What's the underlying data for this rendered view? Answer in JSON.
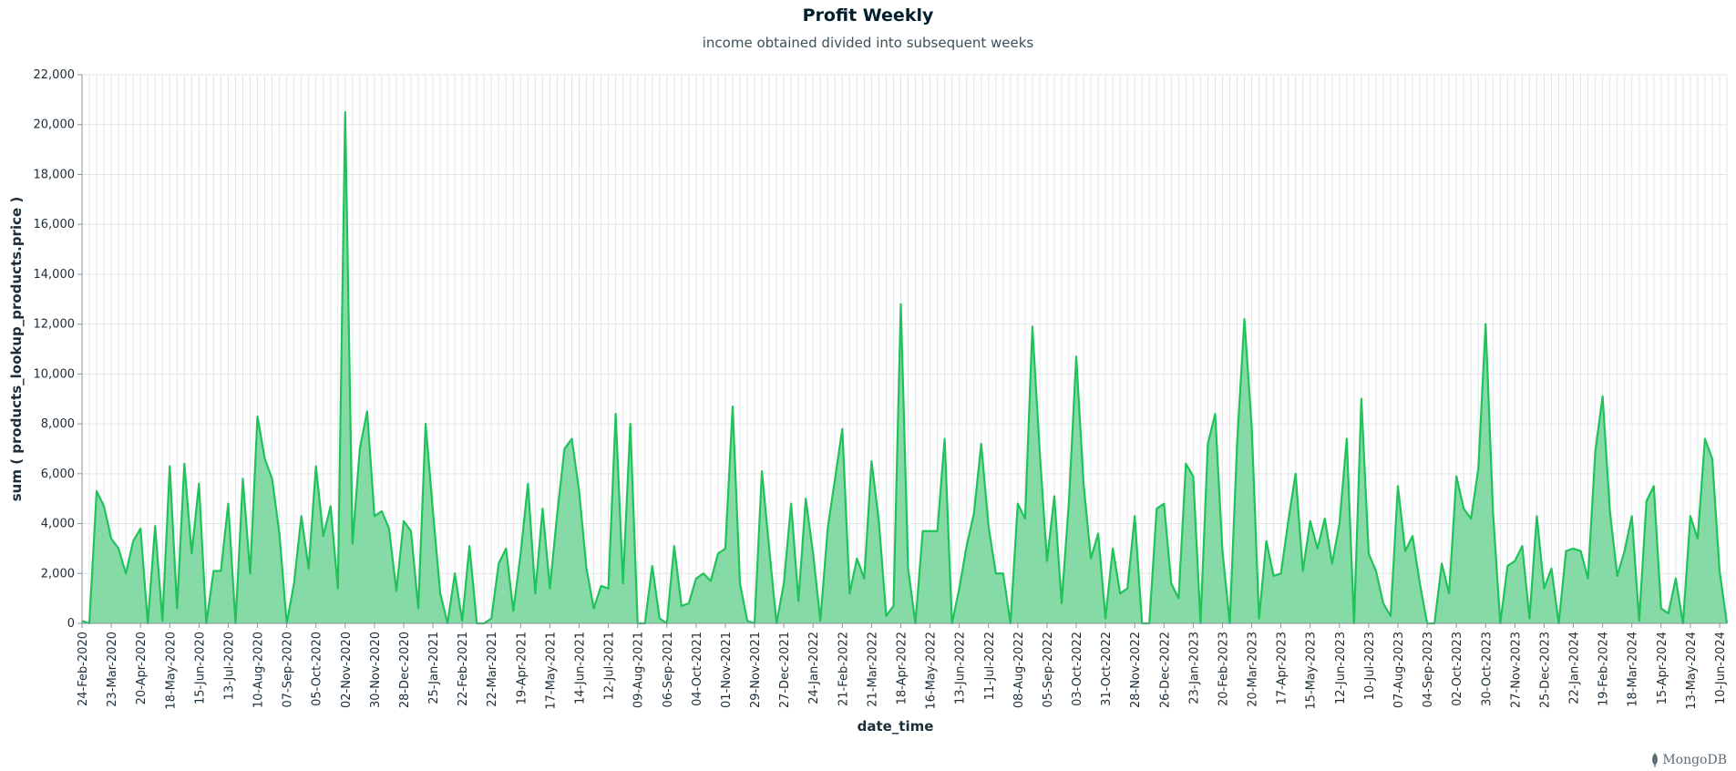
{
  "chart_data": {
    "type": "area",
    "title": "Profit Weekly",
    "subtitle": "income obtained divided into subsequent weeks",
    "xlabel": "date_time",
    "ylabel": "sum ( products_lookup_products.price )",
    "ylim": [
      0,
      22000
    ],
    "yticks": [
      0,
      2000,
      4000,
      6000,
      8000,
      10000,
      12000,
      14000,
      16000,
      18000,
      20000,
      22000
    ],
    "ytick_labels": [
      "0",
      "2,000",
      "4,000",
      "6,000",
      "8,000",
      "10,000",
      "12,000",
      "14,000",
      "16,000",
      "18,000",
      "20,000",
      "22,000"
    ],
    "grid": true,
    "line_color": "#1fc35a",
    "fill_color": "#7ed8a0",
    "x_start": "2020-02-24",
    "x_end": "2024-06-10",
    "xtick_labels": [
      "24-Feb-2020",
      "23-Mar-2020",
      "20-Apr-2020",
      "18-May-2020",
      "15-Jun-2020",
      "13-Jul-2020",
      "10-Aug-2020",
      "07-Sep-2020",
      "05-Oct-2020",
      "02-Nov-2020",
      "30-Nov-2020",
      "28-Dec-2020",
      "25-Jan-2021",
      "22-Feb-2021",
      "22-Mar-2021",
      "19-Apr-2021",
      "17-May-2021",
      "14-Jun-2021",
      "12-Jul-2021",
      "09-Aug-2021",
      "06-Sep-2021",
      "04-Oct-2021",
      "01-Nov-2021",
      "29-Nov-2021",
      "27-Dec-2021",
      "24-Jan-2022",
      "21-Feb-2022",
      "21-Mar-2022",
      "18-Apr-2022",
      "16-May-2022",
      "13-Jun-2022",
      "11-Jul-2022",
      "08-Aug-2022",
      "05-Sep-2022",
      "03-Oct-2022",
      "31-Oct-2022",
      "28-Nov-2022",
      "26-Dec-2022",
      "23-Jan-2023",
      "20-Feb-2023",
      "20-Mar-2023",
      "17-Apr-2023",
      "15-May-2023",
      "12-Jun-2023",
      "10-Jul-2023",
      "07-Aug-2023",
      "04-Sep-2023",
      "02-Oct-2023",
      "30-Oct-2023",
      "27-Nov-2023",
      "25-Dec-2023",
      "22-Jan-2024",
      "19-Feb-2024",
      "18-Mar-2024",
      "15-Apr-2024",
      "13-May-2024",
      "10-Jun-2024"
    ],
    "series": [
      {
        "values": [
          100,
          0,
          5300,
          4700,
          3400,
          3000,
          2000,
          3300,
          3800,
          0,
          3900,
          100,
          6300,
          600,
          6400,
          2800,
          5600,
          0,
          2100,
          2100,
          4800,
          0,
          5800,
          2000,
          8300,
          6600,
          5800,
          3600,
          0,
          1600,
          4300,
          2200,
          6300,
          3500,
          4700,
          1400,
          20500,
          3200,
          7000,
          8500,
          4300,
          4500,
          3800,
          1300,
          4100,
          3700,
          600,
          8000,
          4500,
          1200,
          0,
          2000,
          100,
          3100,
          0,
          0,
          200,
          2400,
          3000,
          500,
          2800,
          5600,
          1200,
          4600,
          1400,
          4400,
          7000,
          7400,
          5300,
          2200,
          600,
          1500,
          1400,
          8400,
          1600,
          8000,
          0,
          0,
          2300,
          200,
          0,
          3100,
          700,
          800,
          1800,
          2000,
          1700,
          2800,
          3000,
          8700,
          1600,
          100,
          0,
          6100,
          3000,
          0,
          1600,
          4800,
          900,
          5000,
          2800,
          100,
          3800,
          5800,
          7800,
          1200,
          2600,
          1800,
          6500,
          4100,
          300,
          700,
          12800,
          2200,
          0,
          3700,
          3700,
          3700,
          7400,
          0,
          1400,
          3100,
          4400,
          7200,
          3900,
          2000,
          2000,
          0,
          4800,
          4200,
          11900,
          6900,
          2500,
          5100,
          800,
          4900,
          10700,
          5600,
          2600,
          3600,
          200,
          3000,
          1200,
          1400,
          4300,
          0,
          0,
          4600,
          4800,
          1600,
          1000,
          6400,
          5900,
          0,
          7200,
          8400,
          2900,
          0,
          7200,
          12200,
          7900,
          200,
          3300,
          1900,
          2000,
          4100,
          6000,
          2100,
          4100,
          3000,
          4200,
          2400,
          4000,
          7400,
          0,
          9000,
          2800,
          2100,
          800,
          300,
          5500,
          2900,
          3500,
          1600,
          0,
          0,
          2400,
          1200,
          5900,
          4600,
          4200,
          6200,
          12000,
          4500,
          0,
          2300,
          2500,
          3100,
          200,
          4300,
          1400,
          2200,
          0,
          2900,
          3000,
          2900,
          1800,
          6900,
          9100,
          4500,
          1900,
          2900,
          4300,
          100,
          4900,
          5500,
          600,
          400,
          1800,
          0,
          4300,
          3400,
          7400,
          6600,
          2100,
          0
        ]
      }
    ]
  },
  "watermark": {
    "text": "MongoDB",
    "icon": "mongodb-leaf-icon"
  }
}
